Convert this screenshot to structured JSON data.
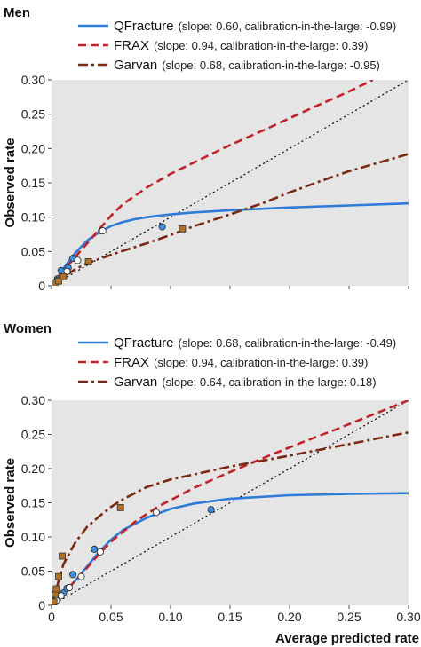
{
  "chart_data": [
    {
      "type": "line",
      "title": "Men",
      "xlabel": "",
      "ylabel": "Observed rate",
      "xlim": [
        0,
        0.3
      ],
      "ylim": [
        0,
        0.3
      ],
      "x_ticks": [
        "0",
        "0.05",
        "0.10",
        "0.15",
        "0.20",
        "0.25",
        "0.30"
      ],
      "y_ticks": [
        "0",
        "0.05",
        "0.10",
        "0.15",
        "0.20",
        "0.25",
        "0.30"
      ],
      "show_x_tick_labels": false,
      "grid": false,
      "legend_position": "top-left",
      "reference_line": {
        "x": [
          0,
          0.3
        ],
        "y": [
          0,
          0.3
        ],
        "style": "dotted"
      },
      "series": [
        {
          "name": "QFracture",
          "note": "(slope: 0.60, calibration-in-the-large: -0.99)",
          "color": "#2f7bd8",
          "dash": "solid",
          "marker": "circle",
          "marker_fill": "#3d8fe0",
          "curve": {
            "x": [
              0,
              0.005,
              0.01,
              0.015,
              0.02,
              0.03,
              0.04,
              0.05,
              0.06,
              0.07,
              0.08,
              0.09,
              0.1,
              0.12,
              0.15,
              0.2,
              0.25,
              0.3
            ],
            "y": [
              0,
              0.012,
              0.025,
              0.037,
              0.048,
              0.066,
              0.078,
              0.087,
              0.093,
              0.097,
              0.1,
              0.102,
              0.104,
              0.107,
              0.11,
              0.114,
              0.117,
              0.12
            ]
          },
          "points": {
            "x": [
              0.002,
              0.003,
              0.005,
              0.008,
              0.014,
              0.018,
              0.042,
              0.093
            ],
            "y": [
              0.002,
              0.005,
              0.01,
              0.022,
              0.026,
              0.04,
              0.08,
              0.086
            ]
          }
        },
        {
          "name": "FRAX",
          "note": "(slope: 0.94, calibration-in-the-large: 0.39)",
          "color": "#c0232a",
          "dash": "dashed",
          "marker": "circle",
          "marker_fill": "#ffffff",
          "curve": {
            "x": [
              0,
              0.005,
              0.01,
              0.02,
              0.03,
              0.04,
              0.05,
              0.06,
              0.08,
              0.1,
              0.12,
              0.15,
              0.18,
              0.2,
              0.22,
              0.25,
              0.27
            ],
            "y": [
              0,
              0.011,
              0.022,
              0.042,
              0.062,
              0.082,
              0.102,
              0.119,
              0.143,
              0.163,
              0.18,
              0.205,
              0.228,
              0.244,
              0.26,
              0.283,
              0.3
            ]
          },
          "points": {
            "x": [
              0.003,
              0.005,
              0.01,
              0.013,
              0.022,
              0.043
            ],
            "y": [
              0.004,
              0.008,
              0.015,
              0.021,
              0.037,
              0.08
            ]
          }
        },
        {
          "name": "Garvan",
          "note": "(slope: 0.68, calibration-in-the-large: -0.95)",
          "color": "#7a2812",
          "dash": "dashdot",
          "marker": "square",
          "marker_fill": "#b07028",
          "curve": {
            "x": [
              0,
              0.01,
              0.02,
              0.03,
              0.04,
              0.05,
              0.06,
              0.08,
              0.1,
              0.12,
              0.15,
              0.18,
              0.2,
              0.23,
              0.25,
              0.28,
              0.3
            ],
            "y": [
              0,
              0.013,
              0.024,
              0.033,
              0.039,
              0.045,
              0.051,
              0.062,
              0.074,
              0.087,
              0.104,
              0.122,
              0.136,
              0.155,
              0.167,
              0.182,
              0.192
            ]
          },
          "points": {
            "x": [
              0.003,
              0.006,
              0.01,
              0.031,
              0.11
            ],
            "y": [
              0.004,
              0.007,
              0.013,
              0.035,
              0.083
            ]
          }
        }
      ]
    },
    {
      "type": "line",
      "title": "Women",
      "xlabel": "Average predicted rate",
      "ylabel": "Observed rate",
      "xlim": [
        0,
        0.3
      ],
      "ylim": [
        0,
        0.3
      ],
      "x_ticks": [
        "0",
        "0.05",
        "0.10",
        "0.15",
        "0.20",
        "0.25",
        "0.30"
      ],
      "y_ticks": [
        "0",
        "0.05",
        "0.10",
        "0.15",
        "0.20",
        "0.25",
        "0.30"
      ],
      "show_x_tick_labels": true,
      "grid": false,
      "legend_position": "top-left",
      "reference_line": {
        "x": [
          0,
          0.3
        ],
        "y": [
          0,
          0.3
        ],
        "style": "dotted"
      },
      "series": [
        {
          "name": "QFracture",
          "note": "(slope: 0.68, calibration-in-the-large: -0.49)",
          "color": "#2f7bd8",
          "dash": "solid",
          "marker": "circle",
          "marker_fill": "#3d8fe0",
          "curve": {
            "x": [
              0,
              0.01,
              0.02,
              0.03,
              0.04,
              0.05,
              0.06,
              0.08,
              0.1,
              0.12,
              0.15,
              0.2,
              0.25,
              0.3
            ],
            "y": [
              0,
              0.017,
              0.036,
              0.057,
              0.078,
              0.096,
              0.11,
              0.128,
              0.141,
              0.149,
              0.156,
              0.161,
              0.163,
              0.164
            ]
          },
          "points": {
            "x": [
              0.003,
              0.005,
              0.01,
              0.013,
              0.018,
              0.036,
              0.134
            ],
            "y": [
              0.005,
              0.01,
              0.018,
              0.025,
              0.045,
              0.082,
              0.14
            ]
          }
        },
        {
          "name": "FRAX",
          "note": "(slope: 0.94, calibration-in-the-large: 0.39)",
          "color": "#c0232a",
          "dash": "dashed",
          "marker": "circle",
          "marker_fill": "#ffffff",
          "curve": {
            "x": [
              0,
              0.01,
              0.02,
              0.03,
              0.04,
              0.05,
              0.07,
              0.09,
              0.12,
              0.15,
              0.18,
              0.21,
              0.24,
              0.27,
              0.3
            ],
            "y": [
              0,
              0.018,
              0.036,
              0.055,
              0.075,
              0.093,
              0.122,
              0.145,
              0.172,
              0.195,
              0.217,
              0.238,
              0.258,
              0.279,
              0.3
            ]
          },
          "points": {
            "x": [
              0.004,
              0.008,
              0.015,
              0.025,
              0.041,
              0.088
            ],
            "y": [
              0.007,
              0.014,
              0.026,
              0.042,
              0.078,
              0.136
            ]
          }
        },
        {
          "name": "Garvan",
          "note": "(slope: 0.64, calibration-in-the-large: 0.18)",
          "color": "#7a2812",
          "dash": "dashdot",
          "marker": "square",
          "marker_fill": "#b07028",
          "curve": {
            "x": [
              0,
              0.005,
              0.01,
              0.02,
              0.03,
              0.04,
              0.05,
              0.06,
              0.08,
              0.1,
              0.15,
              0.2,
              0.25,
              0.3
            ],
            "y": [
              0,
              0.03,
              0.06,
              0.092,
              0.115,
              0.13,
              0.144,
              0.155,
              0.173,
              0.184,
              0.203,
              0.219,
              0.236,
              0.253
            ]
          },
          "points": {
            "x": [
              0.002,
              0.003,
              0.004,
              0.006,
              0.009,
              0.058
            ],
            "y": [
              0.005,
              0.016,
              0.024,
              0.042,
              0.072,
              0.143
            ]
          }
        }
      ]
    }
  ]
}
